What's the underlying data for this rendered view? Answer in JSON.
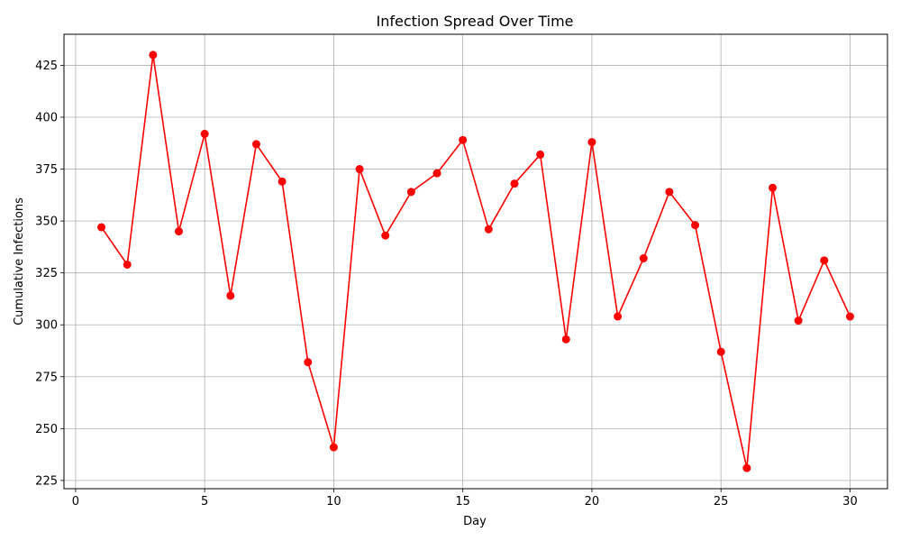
{
  "chart_data": {
    "type": "line",
    "title": "Infection Spread Over Time",
    "xlabel": "Day",
    "ylabel": "Cumulative Infections",
    "xlim": [
      -0.45,
      31.45
    ],
    "ylim": [
      221.05,
      439.95
    ],
    "xticks": [
      0,
      5,
      10,
      15,
      20,
      25,
      30
    ],
    "yticks": [
      225,
      250,
      275,
      300,
      325,
      350,
      375,
      400,
      425
    ],
    "grid": true,
    "series": [
      {
        "color": "#ff0000",
        "marker": "circle",
        "x": [
          1,
          2,
          3,
          4,
          5,
          6,
          7,
          8,
          9,
          10,
          11,
          12,
          13,
          14,
          15,
          16,
          17,
          18,
          19,
          20,
          21,
          22,
          23,
          24,
          25,
          26,
          27,
          28,
          29,
          30
        ],
        "y": [
          347,
          329,
          430,
          345,
          392,
          314,
          387,
          369,
          282,
          241,
          375,
          343,
          364,
          373,
          389,
          346,
          368,
          382,
          293,
          388,
          304,
          332,
          364,
          348,
          287,
          231,
          366,
          302,
          331,
          304
        ]
      }
    ]
  }
}
